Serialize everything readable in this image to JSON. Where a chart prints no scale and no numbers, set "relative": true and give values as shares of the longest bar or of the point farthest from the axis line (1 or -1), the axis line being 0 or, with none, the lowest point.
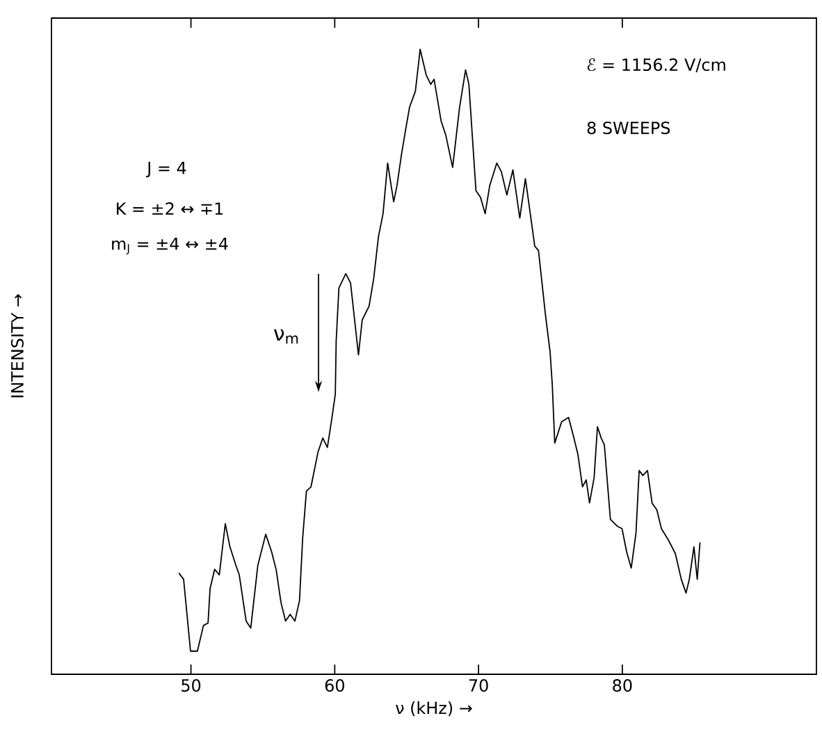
{
  "chart_data": {
    "type": "line",
    "relative": true,
    "xlabel": "ν (kHz) →",
    "ylabel": "INTENSITY →",
    "xlim": [
      40.3,
      93.5
    ],
    "xticks": [
      50,
      60,
      70,
      80
    ],
    "grid": false,
    "annotations": [
      "J = 4",
      "K = ±2 ↔ ∓1",
      "m$_{J}$ = ±4 ↔ ±4",
      "ℰ = 1156.2  V/cm",
      "8 SWEEPS",
      "ν$_{m}$"
    ],
    "series": [
      {
        "color": "#000000",
        "x": [
          49.16,
          49.49,
          49.97,
          50.45,
          50.87,
          51.19,
          51.33,
          51.65,
          51.97,
          52.39,
          52.71,
          53.13,
          53.36,
          53.84,
          54.16,
          54.65,
          55.2,
          55.61,
          55.93,
          56.26,
          56.58,
          56.9,
          57.23,
          57.55,
          57.77,
          58.03,
          58.35,
          58.84,
          59.17,
          59.49,
          59.81,
          60.04,
          60.1,
          60.29,
          60.77,
          61.1,
          61.65,
          61.91,
          62.39,
          62.71,
          63.04,
          63.36,
          63.68,
          64.1,
          64.33,
          64.65,
          64.98,
          65.2,
          65.61,
          65.94,
          66.36,
          66.68,
          66.91,
          67.4,
          67.72,
          68.2,
          68.68,
          69.1,
          69.33,
          69.82,
          70.14,
          70.46,
          70.78,
          71.27,
          71.59,
          71.97,
          72.39,
          72.87,
          73.26,
          73.69,
          73.91,
          74.17,
          74.66,
          74.98,
          75.13,
          75.3,
          75.78,
          76.26,
          76.59,
          76.91,
          77.23,
          77.49,
          77.72,
          78.04,
          78.27,
          78.53,
          78.75,
          79.17,
          79.65,
          79.98,
          80.3,
          80.62,
          80.95,
          81.17,
          81.43,
          81.75,
          82.07,
          82.4,
          82.72,
          83.2,
          83.69,
          84.1,
          84.43,
          84.66,
          84.98,
          85.21,
          85.4
        ],
        "values": [
          0.162,
          0.152,
          0.037,
          0.037,
          0.078,
          0.082,
          0.137,
          0.168,
          0.159,
          0.241,
          0.204,
          0.174,
          0.159,
          0.085,
          0.074,
          0.174,
          0.224,
          0.196,
          0.167,
          0.115,
          0.085,
          0.096,
          0.085,
          0.118,
          0.218,
          0.293,
          0.3,
          0.356,
          0.378,
          0.363,
          0.411,
          0.448,
          0.533,
          0.618,
          0.641,
          0.626,
          0.511,
          0.567,
          0.589,
          0.633,
          0.7,
          0.737,
          0.818,
          0.756,
          0.782,
          0.833,
          0.878,
          0.907,
          0.933,
          1.0,
          0.959,
          0.944,
          0.952,
          0.885,
          0.863,
          0.811,
          0.907,
          0.967,
          0.944,
          0.774,
          0.763,
          0.737,
          0.782,
          0.818,
          0.804,
          0.767,
          0.807,
          0.73,
          0.793,
          0.722,
          0.685,
          0.678,
          0.574,
          0.515,
          0.463,
          0.37,
          0.404,
          0.411,
          0.382,
          0.352,
          0.3,
          0.311,
          0.274,
          0.315,
          0.396,
          0.378,
          0.367,
          0.248,
          0.237,
          0.233,
          0.196,
          0.17,
          0.226,
          0.326,
          0.318,
          0.326,
          0.274,
          0.263,
          0.233,
          0.215,
          0.193,
          0.152,
          0.13,
          0.152,
          0.204,
          0.152,
          0.211
        ]
      }
    ]
  }
}
